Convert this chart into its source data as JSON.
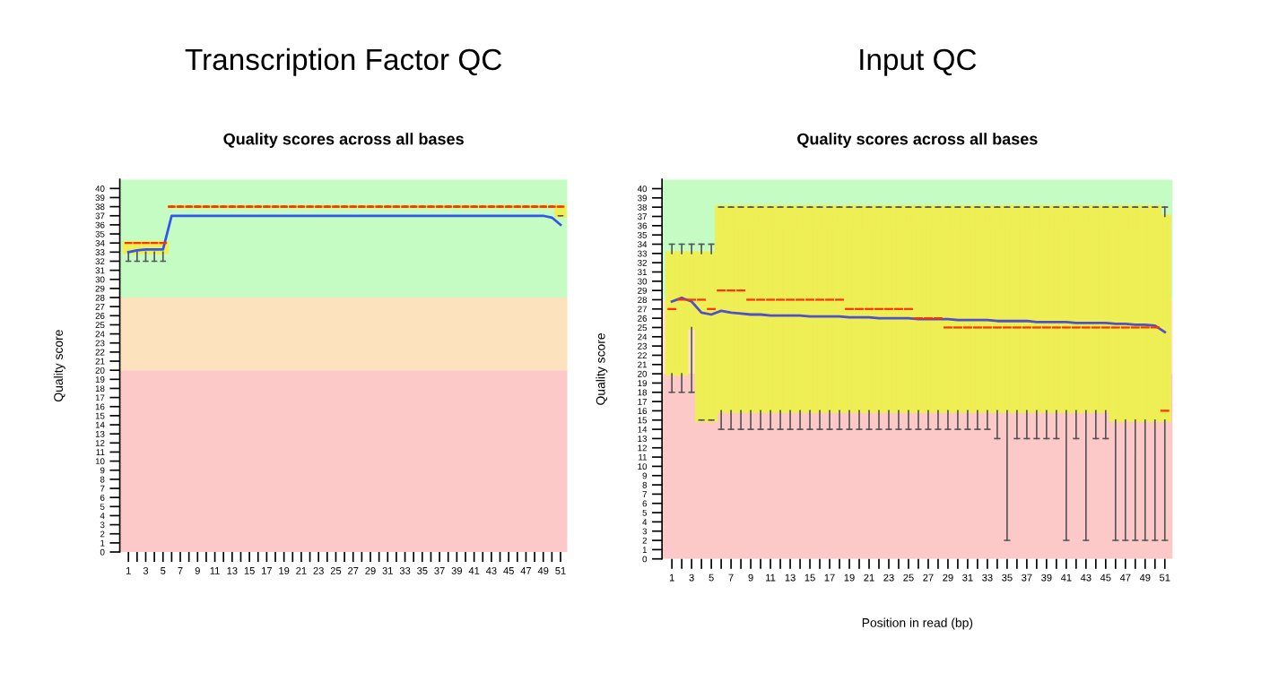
{
  "chart_data": [
    {
      "type": "box",
      "title": "Transcription Factor QC",
      "subtitle": "Quality scores across all bases",
      "ylabel": "Quality score",
      "categories": [
        "1",
        null,
        "3",
        null,
        "5",
        null,
        "7",
        null,
        "9",
        null,
        "11",
        null,
        "13",
        null,
        "15",
        null,
        "17",
        null,
        "19",
        null,
        "21",
        null,
        "23",
        null,
        "25",
        null,
        "27",
        null,
        "29",
        null,
        "31",
        null,
        "33",
        null,
        "35",
        null,
        "37",
        null,
        "39",
        null,
        "41",
        null,
        "43",
        null,
        "45",
        null,
        "47",
        null,
        "49",
        null,
        "51"
      ],
      "ylim": [
        0,
        41
      ],
      "yticks": [
        0,
        1,
        2,
        3,
        4,
        5,
        6,
        7,
        8,
        9,
        10,
        11,
        12,
        13,
        14,
        15,
        16,
        17,
        18,
        19,
        20,
        21,
        22,
        23,
        24,
        25,
        26,
        27,
        28,
        29,
        30,
        31,
        32,
        33,
        34,
        35,
        36,
        37,
        38,
        39,
        40
      ],
      "grid": false,
      "legend": false,
      "bands": [
        {
          "axis": "y",
          "from": 28,
          "to": 41,
          "color": "#c4fcc4"
        },
        {
          "axis": "y",
          "from": 20,
          "to": 28,
          "color": "#fde3bd"
        },
        {
          "axis": "y",
          "from": 0,
          "to": 20,
          "color": "#fdc8c8"
        }
      ],
      "series": [
        {
          "color": "#eeee55",
          "boxes": [
            {
              "low": 32,
              "q1": 33,
              "median": 34,
              "q3": 34,
              "high": 34
            },
            {
              "low": 32,
              "q1": 33,
              "median": 34,
              "q3": 34,
              "high": 34
            },
            {
              "low": 32,
              "q1": 33,
              "median": 34,
              "q3": 34,
              "high": 34
            },
            {
              "low": 32,
              "q1": 33,
              "median": 34,
              "q3": 34,
              "high": 34
            },
            {
              "low": 32,
              "q1": 33,
              "median": 34,
              "q3": 34,
              "high": 34
            },
            {
              "low": 38,
              "q1": 38,
              "median": 38,
              "q3": 38,
              "high": 38
            },
            {
              "low": 38,
              "q1": 38,
              "median": 38,
              "q3": 38,
              "high": 38
            },
            {
              "low": 38,
              "q1": 38,
              "median": 38,
              "q3": 38,
              "high": 38
            },
            {
              "low": 38,
              "q1": 38,
              "median": 38,
              "q3": 38,
              "high": 38
            },
            {
              "low": 38,
              "q1": 38,
              "median": 38,
              "q3": 38,
              "high": 38
            },
            {
              "low": 38,
              "q1": 38,
              "median": 38,
              "q3": 38,
              "high": 38
            },
            {
              "low": 38,
              "q1": 38,
              "median": 38,
              "q3": 38,
              "high": 38
            },
            {
              "low": 38,
              "q1": 38,
              "median": 38,
              "q3": 38,
              "high": 38
            },
            {
              "low": 38,
              "q1": 38,
              "median": 38,
              "q3": 38,
              "high": 38
            },
            {
              "low": 38,
              "q1": 38,
              "median": 38,
              "q3": 38,
              "high": 38
            },
            {
              "low": 38,
              "q1": 38,
              "median": 38,
              "q3": 38,
              "high": 38
            },
            {
              "low": 38,
              "q1": 38,
              "median": 38,
              "q3": 38,
              "high": 38
            },
            {
              "low": 38,
              "q1": 38,
              "median": 38,
              "q3": 38,
              "high": 38
            },
            {
              "low": 38,
              "q1": 38,
              "median": 38,
              "q3": 38,
              "high": 38
            },
            {
              "low": 38,
              "q1": 38,
              "median": 38,
              "q3": 38,
              "high": 38
            },
            {
              "low": 38,
              "q1": 38,
              "median": 38,
              "q3": 38,
              "high": 38
            },
            {
              "low": 38,
              "q1": 38,
              "median": 38,
              "q3": 38,
              "high": 38
            },
            {
              "low": 38,
              "q1": 38,
              "median": 38,
              "q3": 38,
              "high": 38
            },
            {
              "low": 38,
              "q1": 38,
              "median": 38,
              "q3": 38,
              "high": 38
            },
            {
              "low": 38,
              "q1": 38,
              "median": 38,
              "q3": 38,
              "high": 38
            },
            {
              "low": 38,
              "q1": 38,
              "median": 38,
              "q3": 38,
              "high": 38
            },
            {
              "low": 38,
              "q1": 38,
              "median": 38,
              "q3": 38,
              "high": 38
            },
            {
              "low": 38,
              "q1": 38,
              "median": 38,
              "q3": 38,
              "high": 38
            },
            {
              "low": 38,
              "q1": 38,
              "median": 38,
              "q3": 38,
              "high": 38
            },
            {
              "low": 38,
              "q1": 38,
              "median": 38,
              "q3": 38,
              "high": 38
            },
            {
              "low": 38,
              "q1": 38,
              "median": 38,
              "q3": 38,
              "high": 38
            },
            {
              "low": 38,
              "q1": 38,
              "median": 38,
              "q3": 38,
              "high": 38
            },
            {
              "low": 38,
              "q1": 38,
              "median": 38,
              "q3": 38,
              "high": 38
            },
            {
              "low": 38,
              "q1": 38,
              "median": 38,
              "q3": 38,
              "high": 38
            },
            {
              "low": 38,
              "q1": 38,
              "median": 38,
              "q3": 38,
              "high": 38
            },
            {
              "low": 38,
              "q1": 38,
              "median": 38,
              "q3": 38,
              "high": 38
            },
            {
              "low": 38,
              "q1": 38,
              "median": 38,
              "q3": 38,
              "high": 38
            },
            {
              "low": 38,
              "q1": 38,
              "median": 38,
              "q3": 38,
              "high": 38
            },
            {
              "low": 38,
              "q1": 38,
              "median": 38,
              "q3": 38,
              "high": 38
            },
            {
              "low": 38,
              "q1": 38,
              "median": 38,
              "q3": 38,
              "high": 38
            },
            {
              "low": 38,
              "q1": 38,
              "median": 38,
              "q3": 38,
              "high": 38
            },
            {
              "low": 38,
              "q1": 38,
              "median": 38,
              "q3": 38,
              "high": 38
            },
            {
              "low": 38,
              "q1": 38,
              "median": 38,
              "q3": 38,
              "high": 38
            },
            {
              "low": 38,
              "q1": 38,
              "median": 38,
              "q3": 38,
              "high": 38
            },
            {
              "low": 38,
              "q1": 38,
              "median": 38,
              "q3": 38,
              "high": 38
            },
            {
              "low": 38,
              "q1": 38,
              "median": 38,
              "q3": 38,
              "high": 38
            },
            {
              "low": 38,
              "q1": 38,
              "median": 38,
              "q3": 38,
              "high": 38
            },
            {
              "low": 38,
              "q1": 38,
              "median": 38,
              "q3": 38,
              "high": 38
            },
            {
              "low": 38,
              "q1": 38,
              "median": 38,
              "q3": 38,
              "high": 38
            },
            {
              "low": 38,
              "q1": 38,
              "median": 38,
              "q3": 38,
              "high": 38
            },
            {
              "low": 37,
              "q1": 37,
              "median": 38,
              "q3": 38,
              "high": 38
            }
          ]
        },
        {
          "type": "line",
          "color": "#3355ee",
          "values": [
            33,
            33.2,
            33.3,
            33.3,
            33.3,
            37,
            37,
            37,
            37,
            37,
            37,
            37,
            37,
            37,
            37,
            37,
            37,
            37,
            37,
            37,
            37,
            37,
            37,
            37,
            37,
            37,
            37,
            37,
            37,
            37,
            37,
            37,
            37,
            37,
            37,
            37,
            37,
            37,
            37,
            37,
            37,
            37,
            37,
            37,
            37,
            37,
            37,
            37,
            37,
            36.8,
            36
          ]
        }
      ]
    },
    {
      "type": "box",
      "title": "Input QC",
      "subtitle": "Quality scores across all bases",
      "ylabel": "Quality score",
      "xlabel": "Position in read (bp)",
      "categories": [
        "1",
        null,
        "3",
        null,
        "5",
        null,
        "7",
        null,
        "9",
        null,
        "11",
        null,
        "13",
        null,
        "15",
        null,
        "17",
        null,
        "19",
        null,
        "21",
        null,
        "23",
        null,
        "25",
        null,
        "27",
        null,
        "29",
        null,
        "31",
        null,
        "33",
        null,
        "35",
        null,
        "37",
        null,
        "39",
        null,
        "41",
        null,
        "43",
        null,
        "45",
        null,
        "47",
        null,
        "49",
        null,
        "51"
      ],
      "ylim": [
        0,
        41
      ],
      "yticks": [
        0,
        1,
        2,
        3,
        4,
        5,
        6,
        7,
        8,
        9,
        10,
        11,
        12,
        13,
        14,
        15,
        16,
        17,
        18,
        19,
        20,
        21,
        22,
        23,
        24,
        25,
        26,
        27,
        28,
        29,
        30,
        31,
        32,
        33,
        34,
        35,
        36,
        37,
        38,
        39,
        40
      ],
      "grid": false,
      "legend": false,
      "bands": [
        {
          "axis": "y",
          "from": 28,
          "to": 41,
          "color": "#c4fcc4"
        },
        {
          "axis": "y",
          "from": 20,
          "to": 28,
          "color": "#fde3bd"
        },
        {
          "axis": "y",
          "from": 0,
          "to": 20,
          "color": "#fdc8c8"
        }
      ],
      "series": [
        {
          "color": "#eeee55",
          "boxes": [
            {
              "low": 18,
              "q1": 20,
              "median": 27,
              "q3": 33,
              "high": 34
            },
            {
              "low": 18,
              "q1": 20,
              "median": 28,
              "q3": 33,
              "high": 34
            },
            {
              "low": 18,
              "q1": 25,
              "median": 28,
              "q3": 33,
              "high": 34
            },
            {
              "low": 15,
              "q1": 15,
              "median": 28,
              "q3": 33,
              "high": 34
            },
            {
              "low": 15,
              "q1": 15,
              "median": 27,
              "q3": 33,
              "high": 34
            },
            {
              "low": 14,
              "q1": 16,
              "median": 29,
              "q3": 38,
              "high": 38
            },
            {
              "low": 14,
              "q1": 16,
              "median": 29,
              "q3": 38,
              "high": 38
            },
            {
              "low": 14,
              "q1": 16,
              "median": 29,
              "q3": 38,
              "high": 38
            },
            {
              "low": 14,
              "q1": 16,
              "median": 28,
              "q3": 38,
              "high": 38
            },
            {
              "low": 14,
              "q1": 16,
              "median": 28,
              "q3": 38,
              "high": 38
            },
            {
              "low": 14,
              "q1": 16,
              "median": 28,
              "q3": 38,
              "high": 38
            },
            {
              "low": 14,
              "q1": 16,
              "median": 28,
              "q3": 38,
              "high": 38
            },
            {
              "low": 14,
              "q1": 16,
              "median": 28,
              "q3": 38,
              "high": 38
            },
            {
              "low": 14,
              "q1": 16,
              "median": 28,
              "q3": 38,
              "high": 38
            },
            {
              "low": 14,
              "q1": 16,
              "median": 28,
              "q3": 38,
              "high": 38
            },
            {
              "low": 14,
              "q1": 16,
              "median": 28,
              "q3": 38,
              "high": 38
            },
            {
              "low": 14,
              "q1": 16,
              "median": 28,
              "q3": 38,
              "high": 38
            },
            {
              "low": 14,
              "q1": 16,
              "median": 28,
              "q3": 38,
              "high": 38
            },
            {
              "low": 14,
              "q1": 16,
              "median": 27,
              "q3": 38,
              "high": 38
            },
            {
              "low": 14,
              "q1": 16,
              "median": 27,
              "q3": 38,
              "high": 38
            },
            {
              "low": 14,
              "q1": 16,
              "median": 27,
              "q3": 38,
              "high": 38
            },
            {
              "low": 14,
              "q1": 16,
              "median": 27,
              "q3": 38,
              "high": 38
            },
            {
              "low": 14,
              "q1": 16,
              "median": 27,
              "q3": 38,
              "high": 38
            },
            {
              "low": 14,
              "q1": 16,
              "median": 27,
              "q3": 38,
              "high": 38
            },
            {
              "low": 14,
              "q1": 16,
              "median": 27,
              "q3": 38,
              "high": 38
            },
            {
              "low": 14,
              "q1": 16,
              "median": 26,
              "q3": 38,
              "high": 38
            },
            {
              "low": 14,
              "q1": 16,
              "median": 26,
              "q3": 38,
              "high": 38
            },
            {
              "low": 14,
              "q1": 16,
              "median": 26,
              "q3": 38,
              "high": 38
            },
            {
              "low": 14,
              "q1": 16,
              "median": 25,
              "q3": 38,
              "high": 38
            },
            {
              "low": 14,
              "q1": 16,
              "median": 25,
              "q3": 38,
              "high": 38
            },
            {
              "low": 14,
              "q1": 16,
              "median": 25,
              "q3": 38,
              "high": 38
            },
            {
              "low": 14,
              "q1": 16,
              "median": 25,
              "q3": 38,
              "high": 38
            },
            {
              "low": 14,
              "q1": 16,
              "median": 25,
              "q3": 38,
              "high": 38
            },
            {
              "low": 13,
              "q1": 16,
              "median": 25,
              "q3": 38,
              "high": 38
            },
            {
              "low": 2,
              "q1": 16,
              "median": 25,
              "q3": 38,
              "high": 38
            },
            {
              "low": 13,
              "q1": 16,
              "median": 25,
              "q3": 38,
              "high": 38
            },
            {
              "low": 13,
              "q1": 16,
              "median": 25,
              "q3": 38,
              "high": 38
            },
            {
              "low": 13,
              "q1": 16,
              "median": 25,
              "q3": 38,
              "high": 38
            },
            {
              "low": 13,
              "q1": 16,
              "median": 25,
              "q3": 38,
              "high": 38
            },
            {
              "low": 13,
              "q1": 16,
              "median": 25,
              "q3": 38,
              "high": 38
            },
            {
              "low": 2,
              "q1": 16,
              "median": 25,
              "q3": 38,
              "high": 38
            },
            {
              "low": 13,
              "q1": 16,
              "median": 25,
              "q3": 38,
              "high": 38
            },
            {
              "low": 2,
              "q1": 16,
              "median": 25,
              "q3": 38,
              "high": 38
            },
            {
              "low": 13,
              "q1": 16,
              "median": 25,
              "q3": 38,
              "high": 38
            },
            {
              "low": 13,
              "q1": 16,
              "median": 25,
              "q3": 38,
              "high": 38
            },
            {
              "low": 2,
              "q1": 15,
              "median": 25,
              "q3": 38,
              "high": 38
            },
            {
              "low": 2,
              "q1": 15,
              "median": 25,
              "q3": 38,
              "high": 38
            },
            {
              "low": 2,
              "q1": 15,
              "median": 25,
              "q3": 38,
              "high": 38
            },
            {
              "low": 2,
              "q1": 15,
              "median": 25,
              "q3": 38,
              "high": 38
            },
            {
              "low": 2,
              "q1": 15,
              "median": 25,
              "q3": 38,
              "high": 38
            },
            {
              "low": 2,
              "q1": 15,
              "median": 16,
              "q3": 37,
              "high": 38
            }
          ]
        },
        {
          "type": "line",
          "color": "#5050c8",
          "values": [
            27.8,
            28.2,
            27.8,
            26.6,
            26.4,
            26.8,
            26.6,
            26.5,
            26.4,
            26.4,
            26.3,
            26.3,
            26.3,
            26.3,
            26.2,
            26.2,
            26.2,
            26.2,
            26.1,
            26.1,
            26.1,
            26.0,
            26.0,
            26.0,
            26.0,
            25.9,
            25.9,
            25.9,
            25.9,
            25.8,
            25.8,
            25.8,
            25.8,
            25.7,
            25.7,
            25.7,
            25.7,
            25.6,
            25.6,
            25.6,
            25.6,
            25.5,
            25.5,
            25.5,
            25.5,
            25.4,
            25.4,
            25.3,
            25.3,
            25.2,
            24.5
          ]
        }
      ]
    }
  ]
}
